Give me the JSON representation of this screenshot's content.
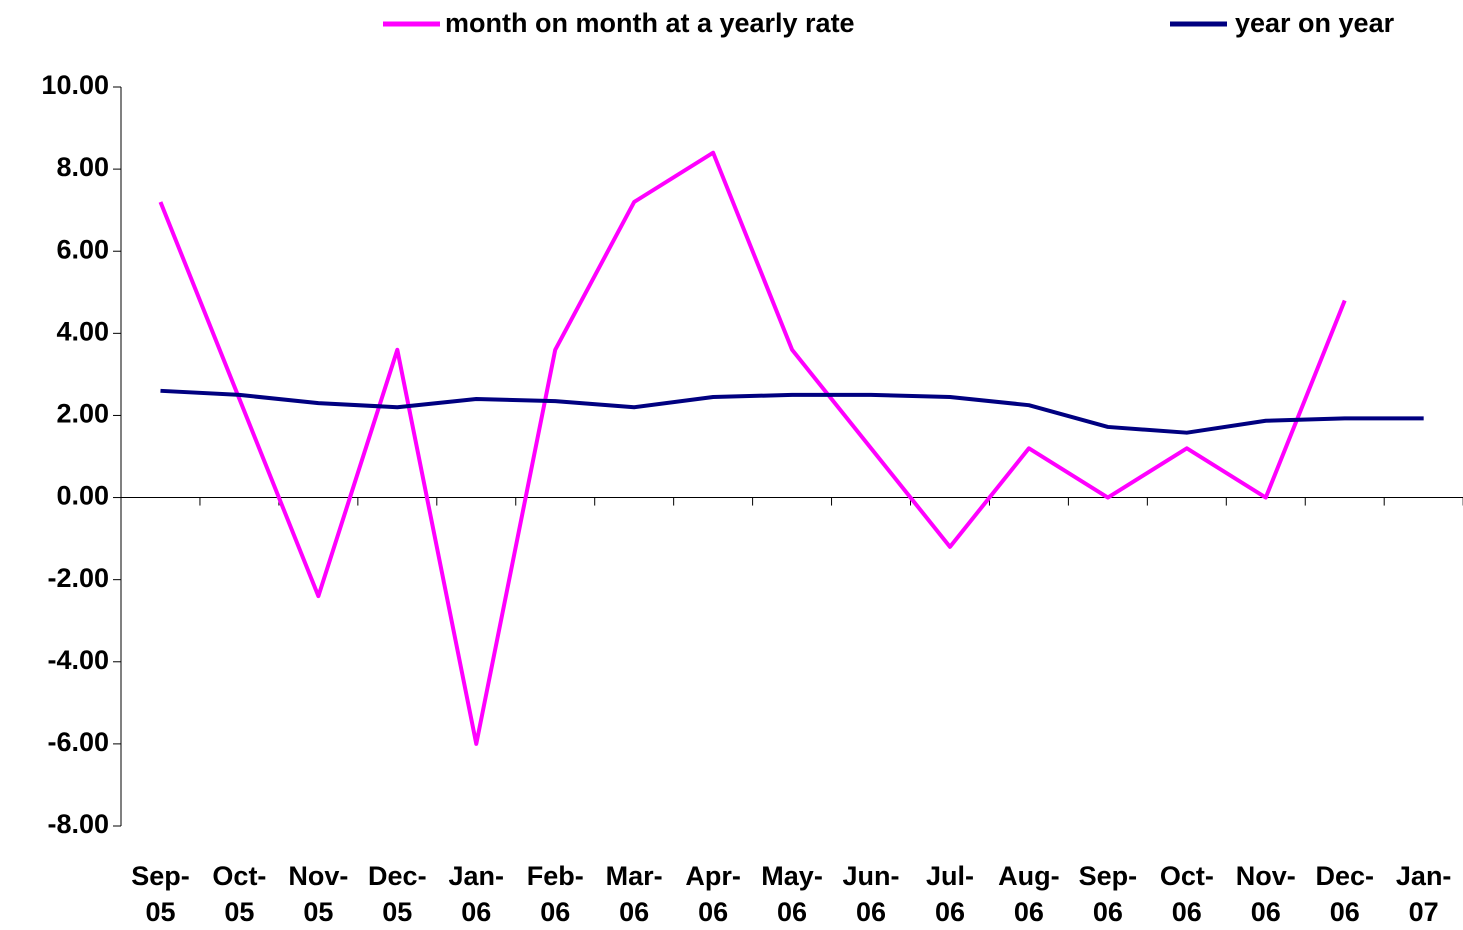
{
  "chart_data": {
    "type": "line",
    "categories": [
      "Sep-05",
      "Oct-05",
      "Nov-05",
      "Dec-05",
      "Jan-06",
      "Feb-06",
      "Mar-06",
      "Apr-06",
      "May-06",
      "Jun-06",
      "Jul-06",
      "Aug-06",
      "Sep-06",
      "Oct-06",
      "Nov-06",
      "Dec-06",
      "Jan-07"
    ],
    "series": [
      {
        "name": "month on month at a yearly rate",
        "color": "#ff00ff",
        "values": [
          7.2,
          2.4,
          -2.4,
          3.6,
          -6.0,
          3.6,
          7.2,
          8.4,
          3.6,
          1.2,
          -1.2,
          1.2,
          0,
          1.2,
          0,
          4.8,
          null
        ]
      },
      {
        "name": "year on year",
        "color": "#000080",
        "values": [
          2.6,
          2.5,
          2.3,
          2.2,
          2.4,
          2.35,
          2.2,
          2.45,
          2.5,
          2.5,
          2.45,
          2.25,
          1.72,
          1.58,
          1.87,
          1.93,
          1.93
        ]
      }
    ],
    "ylim": [
      -8,
      10
    ],
    "yticks": [
      {
        "value": -8,
        "label": "-8.00"
      },
      {
        "value": -6,
        "label": "-6.00"
      },
      {
        "value": -4,
        "label": "-4.00"
      },
      {
        "value": -2,
        "label": "-2.00"
      },
      {
        "value": 0,
        "label": "0.00"
      },
      {
        "value": 2,
        "label": "2.00"
      },
      {
        "value": 4,
        "label": "4.00"
      },
      {
        "value": 6,
        "label": "6.00"
      },
      {
        "value": 8,
        "label": "8.00"
      },
      {
        "value": 10,
        "label": "10.00"
      }
    ],
    "grid": false,
    "legend": "top"
  }
}
